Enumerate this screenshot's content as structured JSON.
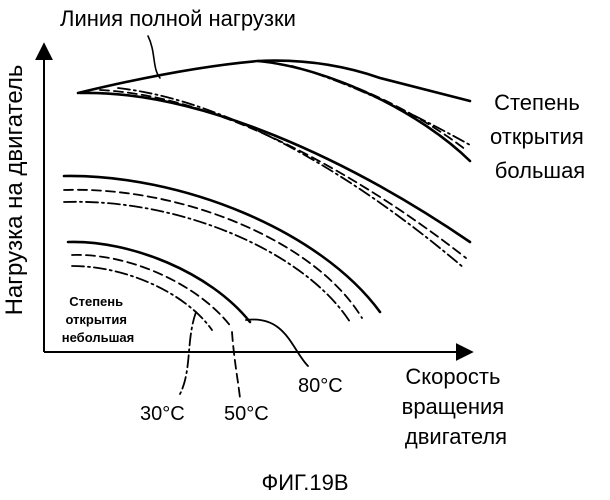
{
  "labels": {
    "full_load_line": "Линия полной нагрузки",
    "y_axis": "Нагрузка на двигатель",
    "x_axis_lines": [
      "Скорость",
      "вращения",
      "двигателя"
    ],
    "opening_large_lines": [
      "Степень",
      "открытия",
      "большая"
    ],
    "opening_small_lines": [
      "Степень",
      "открытия",
      "небольшая"
    ],
    "temperatures": [
      "30°C",
      "50°C",
      "80°C"
    ],
    "figure_caption": "ФИГ.19B"
  }
}
